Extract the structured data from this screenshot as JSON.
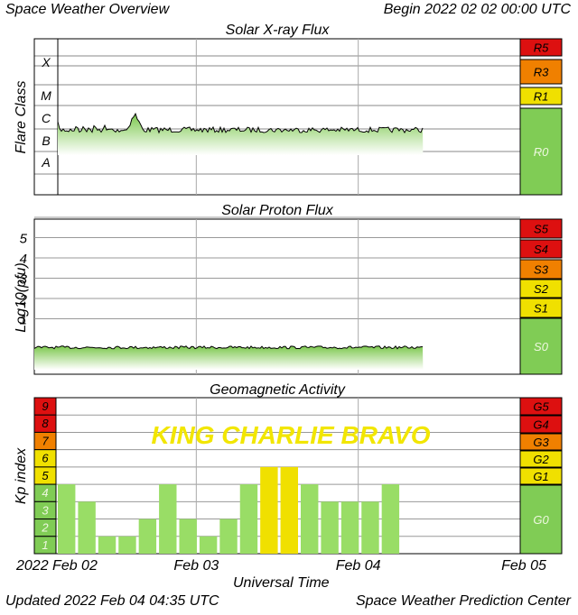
{
  "header": {
    "title": "Space Weather Overview",
    "begin": "Begin 2022 02 02 00:00 UTC"
  },
  "footer": {
    "updated": "Updated 2022 Feb 04 04:35 UTC",
    "center": "Space Weather Prediction Center"
  },
  "xaxis": {
    "label": "Universal Time",
    "ticks": [
      "2022 Feb 02",
      "Feb 03",
      "Feb 04",
      "Feb 05"
    ]
  },
  "colors": {
    "green": "#80cc55",
    "yellow": "#f0e000",
    "orange": "#f08000",
    "red": "#dd1010",
    "bright_green": "#99dd66"
  },
  "chart_data": [
    {
      "type": "area",
      "title": "Solar X-ray Flux",
      "ylabel": "Flare Class",
      "y_classes": [
        "X",
        "M",
        "C",
        "B",
        "A"
      ],
      "scale_labels": [
        "R5",
        "R3",
        "R1",
        "R0"
      ],
      "x_range_days": [
        0,
        3
      ],
      "data_extent_days": 2.4,
      "baseline_class": "B",
      "peak": {
        "day": 0.62,
        "class": "C"
      }
    },
    {
      "type": "area",
      "title": "Solar Proton Flux",
      "ylabel": "Log10(pfu)",
      "ytick_labels": [
        "5",
        "4",
        "3",
        "2",
        "1"
      ],
      "scale_labels": [
        "S5",
        "S4",
        "S3",
        "S2",
        "S1",
        "S0"
      ],
      "x_range_days": [
        0,
        3
      ],
      "data_extent_days": 2.4,
      "baseline_log_pfu": -0.5
    },
    {
      "type": "bar",
      "title": "Geomagnetic Activity",
      "ylabel": "Kp index",
      "annotation": "KING CHARLIE BRAVO",
      "kp_levels": [
        "9",
        "8",
        "7",
        "6",
        "5",
        "4",
        "3",
        "2",
        "1"
      ],
      "scale_labels": [
        "G5",
        "G4",
        "G3",
        "G2",
        "G1",
        "G0"
      ],
      "ylim": [
        0,
        9
      ],
      "bar_hours": 3,
      "values": [
        4,
        3,
        1,
        1,
        2,
        4,
        2,
        1,
        2,
        4,
        5,
        5,
        4,
        3,
        3,
        3,
        4
      ]
    }
  ]
}
